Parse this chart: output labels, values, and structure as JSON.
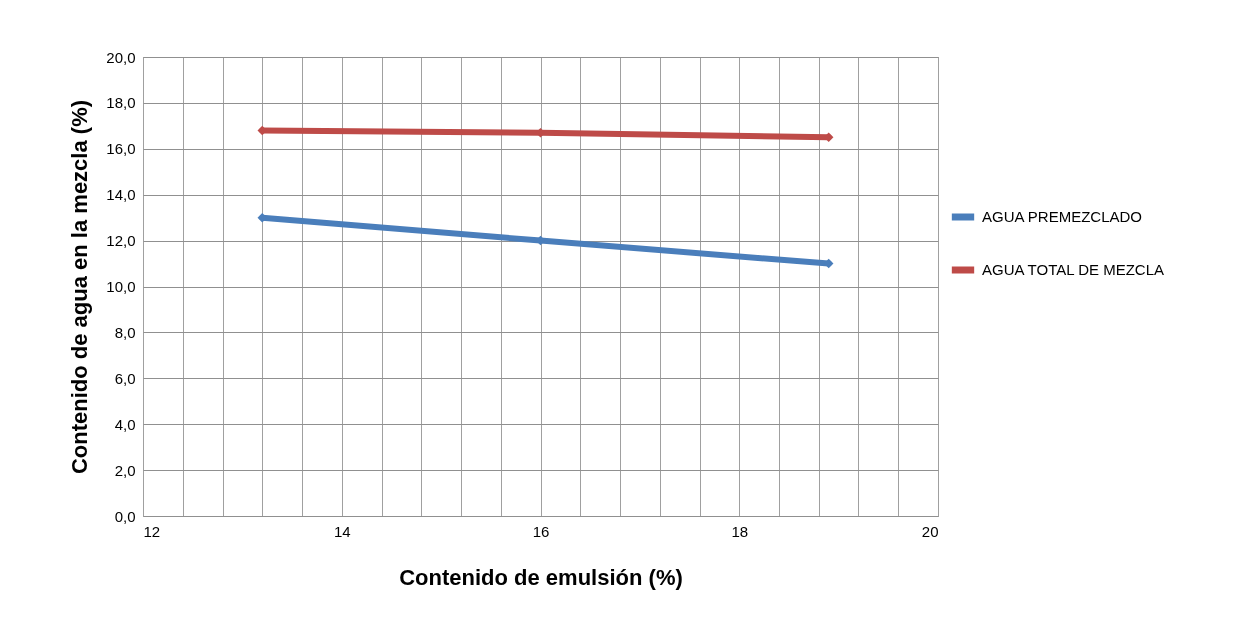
{
  "chart_data": {
    "type": "line",
    "xlabel": "Contenido de emulsión (%)",
    "ylabel": "Contenido de agua en la mezcla (%)",
    "xlim": [
      12,
      20
    ],
    "xticks": [
      12,
      {
        "value": 12.4,
        "label": null
      },
      {
        "value": 12.8,
        "label": null
      },
      {
        "value": 13.2,
        "label": null
      },
      {
        "value": 13.6,
        "label": null
      },
      14,
      {
        "value": 14.4,
        "label": null
      },
      {
        "value": 14.8,
        "label": null
      },
      {
        "value": 15.2,
        "label": null
      },
      {
        "value": 15.6,
        "label": null
      },
      16,
      {
        "value": 16.4,
        "label": null
      },
      {
        "value": 16.8,
        "label": null
      },
      {
        "value": 17.2,
        "label": null
      },
      {
        "value": 17.6,
        "label": null
      },
      18,
      {
        "value": 18.4,
        "label": null
      },
      {
        "value": 18.8,
        "label": null
      },
      {
        "value": 19.2,
        "label": null
      },
      {
        "value": 19.6,
        "label": null
      },
      20
    ],
    "ylim": [
      0,
      20
    ],
    "yticks": [
      {
        "value": 0,
        "label": "0,0"
      },
      {
        "value": 2,
        "label": "2,0"
      },
      {
        "value": 4,
        "label": "4,0"
      },
      {
        "value": 6,
        "label": "6,0"
      },
      {
        "value": 8,
        "label": "8,0"
      },
      {
        "value": 10,
        "label": "10,0"
      },
      {
        "value": 12,
        "label": "12,0"
      },
      {
        "value": 14,
        "label": "14,0"
      },
      {
        "value": 16,
        "label": "16,0"
      },
      {
        "value": 18,
        "label": "18,0"
      },
      {
        "value": 20,
        "label": "20,0"
      }
    ],
    "x": [
      13.2,
      16.0,
      18.9
    ],
    "series": [
      {
        "name": "AGUA PREMEZCLADO",
        "color": "#4a7ebb",
        "values": [
          13.0,
          12.0,
          11.0
        ]
      },
      {
        "name": "AGUA TOTAL  DE MEZCLA",
        "color": "#be4b48",
        "values": [
          16.8,
          16.7,
          16.5
        ]
      }
    ],
    "grid": true,
    "legend": "right",
    "marker": "diamond",
    "line_style": "solid"
  }
}
